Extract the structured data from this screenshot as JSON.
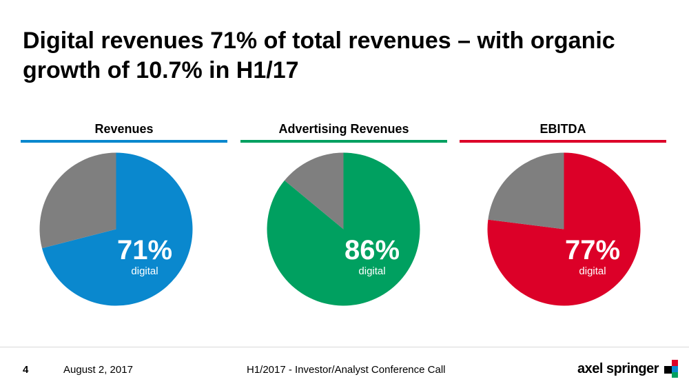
{
  "slide": {
    "title": "Digital revenues 71% of total revenues – with organic growth of 10.7% in H1/17"
  },
  "chart_data": [
    {
      "type": "pie",
      "title": "Revenues",
      "slices": [
        {
          "label": "digital",
          "value": 71
        },
        {
          "label": "",
          "value": 29
        }
      ],
      "center_label": {
        "value": "71%",
        "text": "digital"
      },
      "colors": [
        "#0a88ce",
        "#7f7f7f"
      ]
    },
    {
      "type": "pie",
      "title": "Advertising Revenues",
      "slices": [
        {
          "label": "digital",
          "value": 86
        },
        {
          "label": "",
          "value": 14
        }
      ],
      "center_label": {
        "value": "86%",
        "text": "digital"
      },
      "colors": [
        "#00a060",
        "#7f7f7f"
      ]
    },
    {
      "type": "pie",
      "title": "EBITDA",
      "slices": [
        {
          "label": "digital",
          "value": 77
        },
        {
          "label": "",
          "value": 23
        }
      ],
      "center_label": {
        "value": "77%",
        "text": "digital"
      },
      "colors": [
        "#dc0028",
        "#7f7f7f"
      ]
    }
  ],
  "footer": {
    "page_number": "4",
    "date": "August 2, 2017",
    "event": "H1/2017 - Investor/Analyst Conference Call",
    "logo_text": "axel springer"
  }
}
